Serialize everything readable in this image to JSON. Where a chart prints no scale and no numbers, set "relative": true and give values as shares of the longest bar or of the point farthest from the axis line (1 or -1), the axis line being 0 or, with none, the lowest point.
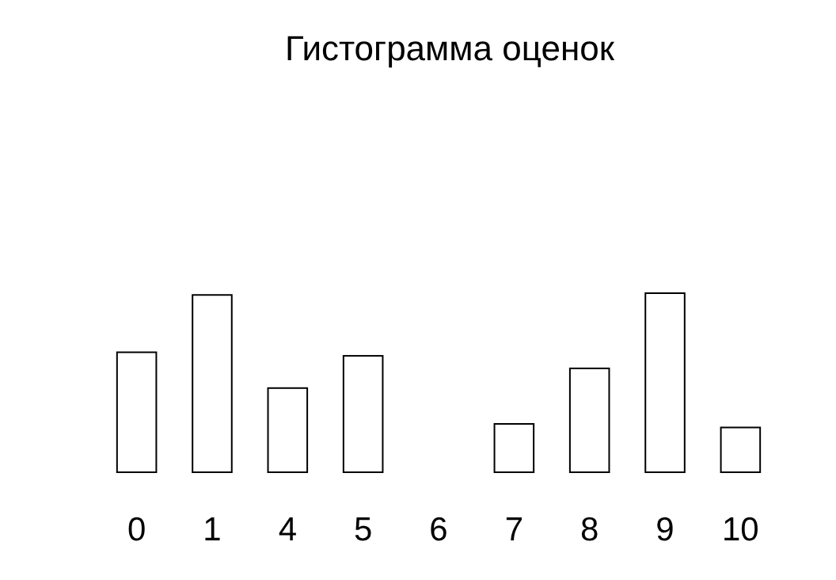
{
  "chart_data": {
    "type": "bar",
    "title": "Гистограмма оценок",
    "relative": true,
    "categories": [
      "0",
      "1",
      "4",
      "5",
      "6",
      "7",
      "8",
      "9",
      "10"
    ],
    "values": [
      0.67,
      0.99,
      0.47,
      0.65,
      0,
      0.27,
      0.58,
      1,
      0.25
    ],
    "color": "#ffffff"
  }
}
